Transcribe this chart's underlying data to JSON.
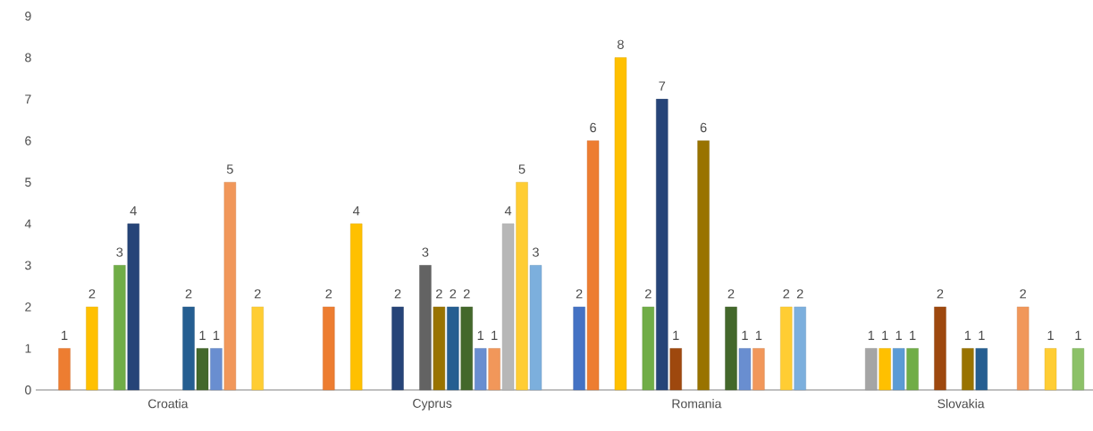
{
  "chart_data": {
    "type": "bar",
    "categories": [
      "Croatia",
      "Cyprus",
      "Romania",
      "Slovakia"
    ],
    "ylim": [
      0,
      9
    ],
    "yticks": [
      0,
      1,
      2,
      3,
      4,
      5,
      6,
      7,
      8,
      9
    ],
    "grid": false,
    "data_labels": true,
    "series": [
      {
        "color": "#4472c4",
        "values": [
          null,
          null,
          2,
          null
        ]
      },
      {
        "color": "#ed7d31",
        "values": [
          1,
          2,
          6,
          null
        ]
      },
      {
        "color": "#a5a5a5",
        "values": [
          null,
          null,
          null,
          1
        ]
      },
      {
        "color": "#ffc000",
        "values": [
          2,
          4,
          8,
          1
        ]
      },
      {
        "color": "#5b9bd5",
        "values": [
          null,
          null,
          null,
          1
        ]
      },
      {
        "color": "#70ad47",
        "values": [
          3,
          null,
          2,
          1
        ]
      },
      {
        "color": "#264478",
        "values": [
          4,
          2,
          7,
          null
        ]
      },
      {
        "color": "#9e480e",
        "values": [
          null,
          null,
          1,
          2
        ]
      },
      {
        "color": "#636363",
        "values": [
          null,
          3,
          null,
          null
        ]
      },
      {
        "color": "#997300",
        "values": [
          null,
          2,
          6,
          1
        ]
      },
      {
        "color": "#255e91",
        "values": [
          2,
          2,
          null,
          1
        ]
      },
      {
        "color": "#43682b",
        "values": [
          1,
          2,
          2,
          null
        ]
      },
      {
        "color": "#698ed0",
        "values": [
          1,
          1,
          1,
          null
        ]
      },
      {
        "color": "#f1975a",
        "values": [
          5,
          1,
          1,
          2
        ]
      },
      {
        "color": "#b7b7b7",
        "values": [
          null,
          4,
          null,
          null
        ]
      },
      {
        "color": "#ffcd33",
        "values": [
          2,
          5,
          2,
          1
        ]
      },
      {
        "color": "#7cafdd",
        "values": [
          null,
          3,
          2,
          null
        ]
      },
      {
        "color": "#8cc168",
        "values": [
          null,
          null,
          null,
          1
        ]
      }
    ]
  }
}
